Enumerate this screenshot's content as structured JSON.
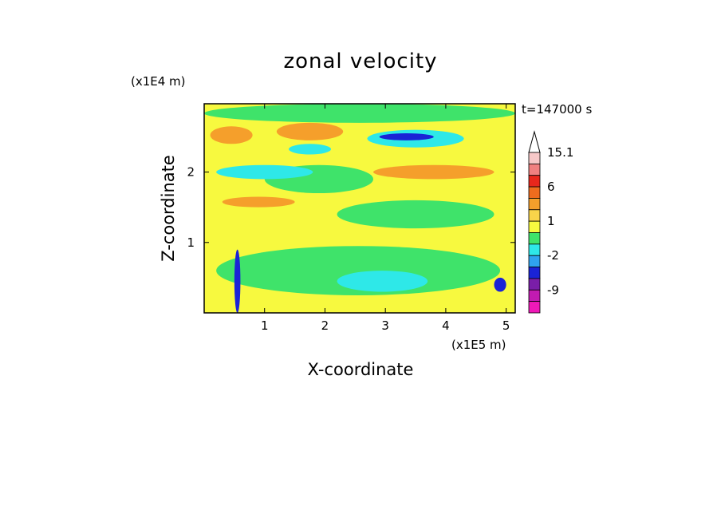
{
  "chart_data": {
    "type": "heatmap",
    "title": "zonal velocity",
    "xlabel": "X-coordinate",
    "ylabel": "Z-coordinate",
    "x_multiplier": "(x1E5 m)",
    "y_multiplier": "(x1E4 m)",
    "time_label": "t=147000 s",
    "xlim": [
      0,
      5.15
    ],
    "ylim": [
      0,
      2.97
    ],
    "x_ticks": [
      "1",
      "2",
      "3",
      "4",
      "5"
    ],
    "y_ticks": [
      "1",
      "2"
    ],
    "x_tick_values": [
      1,
      2,
      3,
      4,
      5
    ],
    "y_tick_values": [
      1,
      2
    ],
    "colorbar": {
      "labels": [
        "15.1",
        "6",
        "1",
        "-2",
        "-9"
      ],
      "levels": [
        {
          "lo": 15.1,
          "hi": null,
          "color": "#ffffff"
        },
        {
          "lo": 12,
          "hi": 15.1,
          "color": "#f7c8c8"
        },
        {
          "lo": 9,
          "hi": 12,
          "color": "#f08080"
        },
        {
          "lo": 6,
          "hi": 9,
          "color": "#e8271c"
        },
        {
          "lo": 3,
          "hi": 6,
          "color": "#ee6c1e"
        },
        {
          "lo": 2,
          "hi": 3,
          "color": "#f59f2b"
        },
        {
          "lo": 1,
          "hi": 2,
          "color": "#f9d44a"
        },
        {
          "lo": 0,
          "hi": 1,
          "color": "#f7f93f"
        },
        {
          "lo": -1,
          "hi": 0,
          "color": "#3fe36a"
        },
        {
          "lo": -2,
          "hi": -1,
          "color": "#2ee8e8"
        },
        {
          "lo": -3,
          "hi": -2,
          "color": "#2fa3ef"
        },
        {
          "lo": -6,
          "hi": -3,
          "color": "#1a23d6"
        },
        {
          "lo": -9,
          "hi": -6,
          "color": "#7a1ea8"
        },
        {
          "lo": -12,
          "hi": -9,
          "color": "#c21bb1"
        },
        {
          "lo": null,
          "hi": -12,
          "color": "#f019b8"
        }
      ]
    },
    "field": {
      "background": "#f7f93f",
      "regions": [
        {
          "level": "green",
          "color": "#3fe36a",
          "x": [
            0,
            5.15
          ],
          "y": [
            2.7,
            2.97
          ]
        },
        {
          "level": "green",
          "color": "#3fe36a",
          "x": [
            0.2,
            4.9
          ],
          "y": [
            0.25,
            0.95
          ]
        },
        {
          "level": "green",
          "color": "#3fe36a",
          "x": [
            2.2,
            4.8
          ],
          "y": [
            1.2,
            1.6
          ]
        },
        {
          "level": "green",
          "color": "#3fe36a",
          "x": [
            1.0,
            2.8
          ],
          "y": [
            1.7,
            2.1
          ]
        },
        {
          "level": "orange",
          "color": "#f59f2b",
          "x": [
            0.1,
            0.8
          ],
          "y": [
            2.4,
            2.65
          ]
        },
        {
          "level": "orange",
          "color": "#f59f2b",
          "x": [
            1.2,
            2.3
          ],
          "y": [
            2.45,
            2.7
          ]
        },
        {
          "level": "orange",
          "color": "#f59f2b",
          "x": [
            2.8,
            4.8
          ],
          "y": [
            1.9,
            2.1
          ]
        },
        {
          "level": "orange",
          "color": "#f59f2b",
          "x": [
            0.3,
            1.5
          ],
          "y": [
            1.5,
            1.65
          ]
        },
        {
          "level": "cyan",
          "color": "#2ee8e8",
          "x": [
            2.7,
            4.3
          ],
          "y": [
            2.35,
            2.6
          ]
        },
        {
          "level": "cyan",
          "color": "#2ee8e8",
          "x": [
            0.2,
            1.8
          ],
          "y": [
            1.9,
            2.1
          ]
        },
        {
          "level": "cyan",
          "color": "#2ee8e8",
          "x": [
            1.4,
            2.1
          ],
          "y": [
            2.25,
            2.4
          ]
        },
        {
          "level": "cyan",
          "color": "#2ee8e8",
          "x": [
            2.2,
            3.7
          ],
          "y": [
            0.3,
            0.6
          ]
        },
        {
          "level": "blue",
          "color": "#1a23d6",
          "x": [
            2.9,
            3.8
          ],
          "y": [
            2.45,
            2.55
          ]
        },
        {
          "level": "blue",
          "color": "#1a23d6",
          "x": [
            4.8,
            5.0
          ],
          "y": [
            0.3,
            0.5
          ]
        },
        {
          "level": "blue",
          "color": "#1a23d6",
          "x": [
            0.5,
            0.6
          ],
          "y": [
            0.0,
            0.9
          ]
        }
      ]
    },
    "grid": false,
    "legend": "right colorbar"
  }
}
